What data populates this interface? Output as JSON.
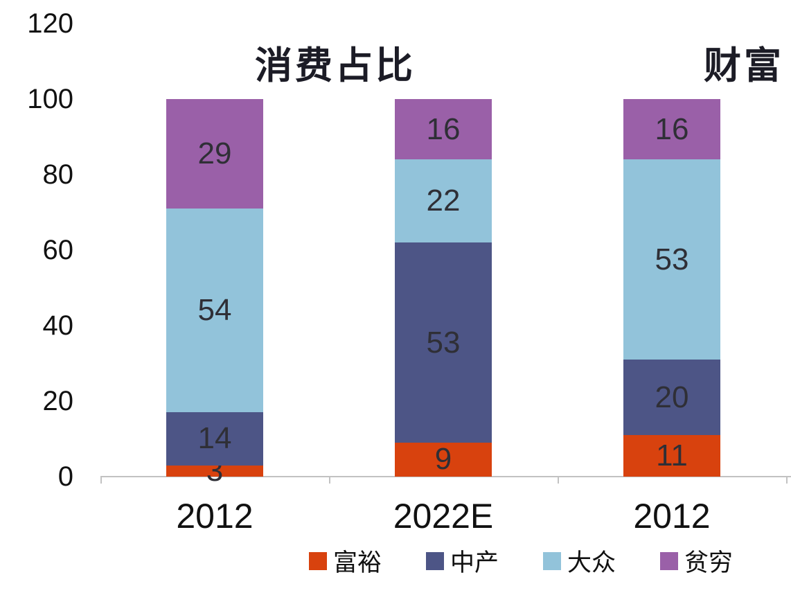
{
  "chart_data": {
    "type": "bar",
    "stacked": true,
    "title_left": "消费占比",
    "title_right": "财富",
    "categories": [
      "2012",
      "2022E",
      "2012"
    ],
    "series": [
      {
        "name": "富裕",
        "color": "#d8420e",
        "values": [
          3,
          9,
          11
        ]
      },
      {
        "name": "中产",
        "color": "#4d5586",
        "values": [
          14,
          53,
          20
        ]
      },
      {
        "name": "大众",
        "color": "#92c3da",
        "values": [
          54,
          22,
          53
        ]
      },
      {
        "name": "贫穷",
        "color": "#9a60a8",
        "values": [
          29,
          16,
          16
        ]
      }
    ],
    "y_ticks": [
      0,
      20,
      40,
      60,
      80,
      100,
      120
    ],
    "ylim": [
      0,
      120
    ],
    "xlabel": "",
    "ylabel": "",
    "grid": false,
    "legend_position": "bottom",
    "axis_color": "#c2c2c2",
    "label_color": "#2f2f36"
  }
}
